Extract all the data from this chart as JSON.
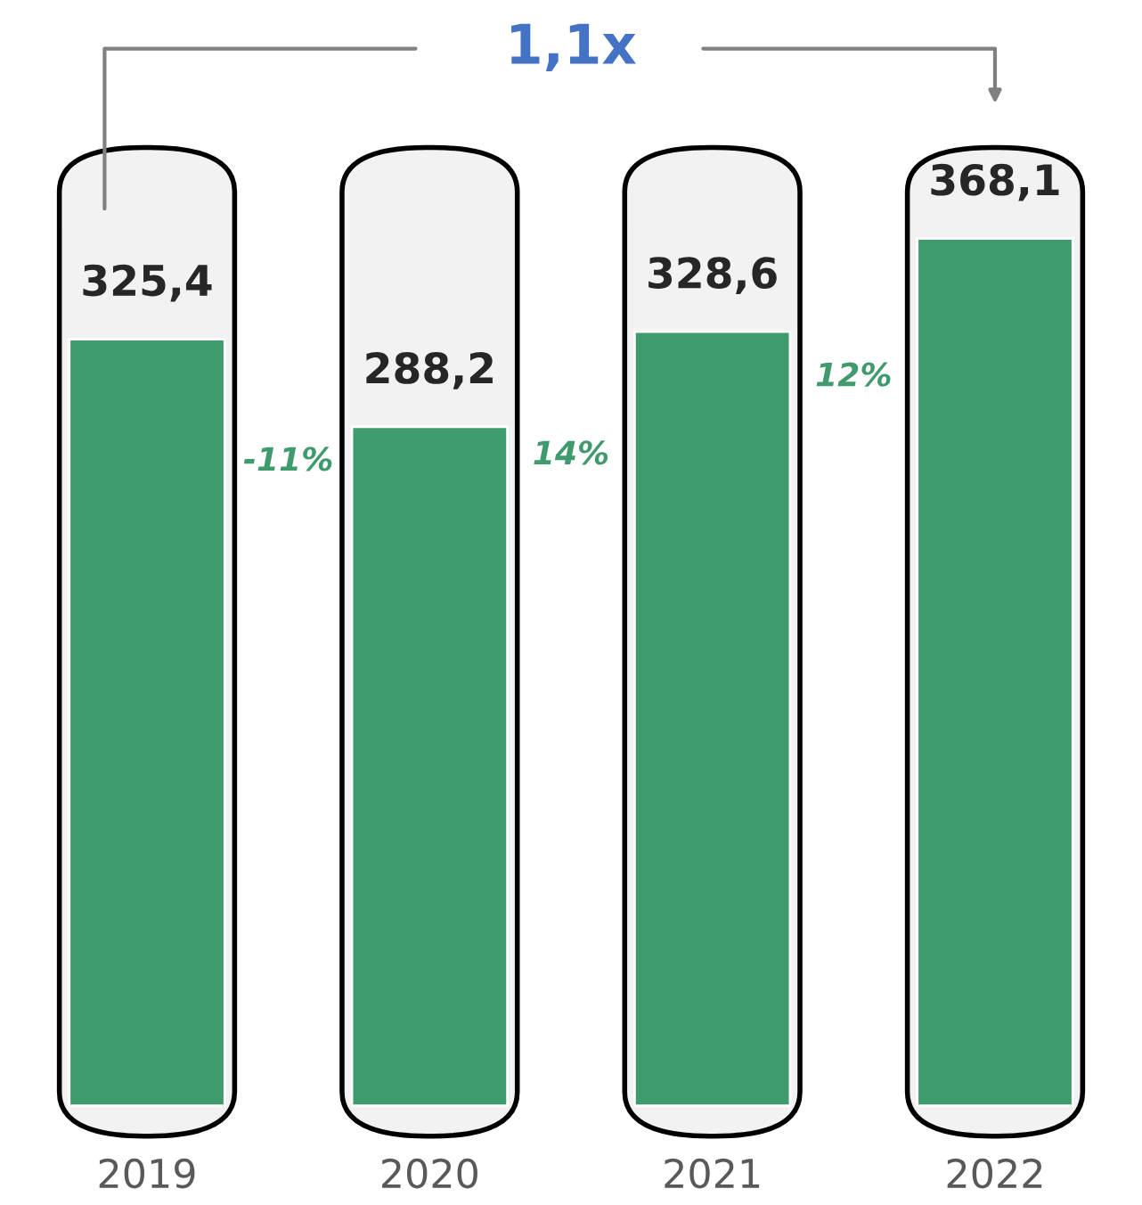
{
  "chart_data": {
    "type": "bar",
    "categories": [
      "2019",
      "2020",
      "2021",
      "2022"
    ],
    "values": [
      325.4,
      288.2,
      328.6,
      368.1
    ],
    "value_labels": [
      "325,4",
      "288,2",
      "328,6",
      "368,1"
    ],
    "color": "#3f9a6e",
    "annotations": [
      "1,1x",
      "-11%",
      "14%",
      "12%"
    ]
  }
}
